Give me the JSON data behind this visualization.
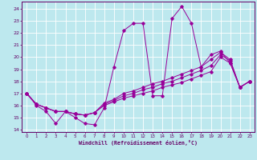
{
  "xlabel": "Windchill (Refroidissement éolien,°C)",
  "background_color": "#bde8ee",
  "grid_color": "#ffffff",
  "line_color": "#990099",
  "xlim": [
    -0.5,
    23.5
  ],
  "ylim": [
    13.8,
    24.6
  ],
  "yticks": [
    14,
    15,
    16,
    17,
    18,
    19,
    20,
    21,
    22,
    23,
    24
  ],
  "xticks": [
    0,
    1,
    2,
    3,
    4,
    5,
    6,
    7,
    8,
    9,
    10,
    11,
    12,
    13,
    14,
    15,
    16,
    17,
    18,
    19,
    20,
    21,
    22,
    23
  ],
  "series": [
    [
      17.0,
      16.0,
      15.5,
      14.5,
      15.5,
      15.0,
      14.5,
      14.4,
      15.8,
      19.2,
      22.2,
      22.8,
      22.8,
      16.8,
      16.8,
      23.2,
      24.2,
      22.8,
      19.2,
      20.2,
      20.5,
      19.5,
      17.5,
      18.0
    ],
    [
      17.0,
      16.1,
      15.8,
      15.5,
      15.5,
      15.3,
      15.2,
      15.4,
      16.0,
      16.3,
      16.6,
      16.8,
      17.0,
      17.2,
      17.5,
      17.7,
      17.9,
      18.2,
      18.5,
      18.8,
      20.0,
      19.5,
      17.5,
      18.0
    ],
    [
      17.0,
      16.1,
      15.8,
      15.5,
      15.5,
      15.3,
      15.2,
      15.4,
      16.1,
      16.4,
      16.8,
      17.0,
      17.3,
      17.5,
      17.8,
      18.0,
      18.3,
      18.6,
      18.9,
      19.3,
      20.2,
      19.7,
      17.5,
      18.0
    ],
    [
      17.0,
      16.1,
      15.8,
      15.5,
      15.5,
      15.3,
      15.2,
      15.4,
      16.2,
      16.5,
      17.0,
      17.2,
      17.5,
      17.8,
      18.0,
      18.3,
      18.6,
      18.9,
      19.2,
      19.8,
      20.4,
      19.8,
      17.5,
      18.0
    ]
  ]
}
